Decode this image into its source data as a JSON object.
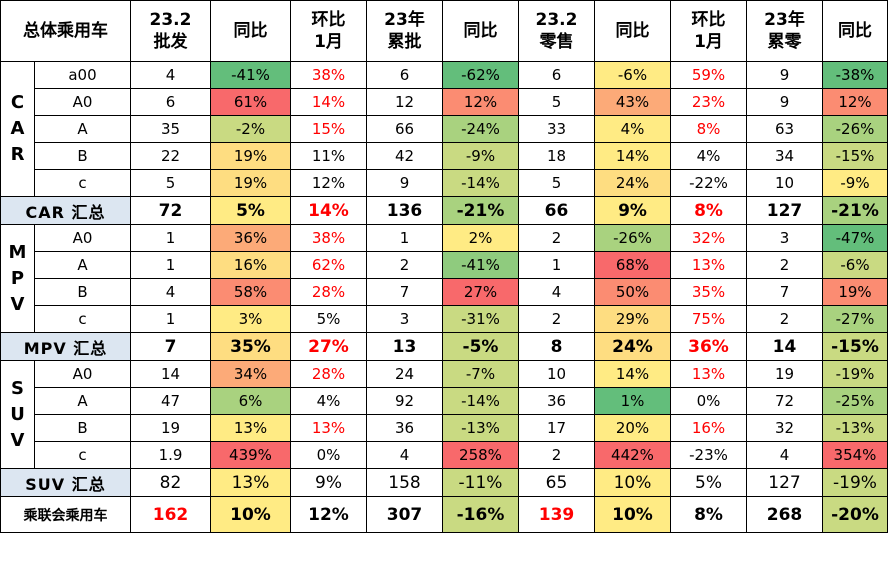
{
  "headers": [
    "总体乘用车",
    "23.2\n批发",
    "同比",
    "环比\n1月",
    "23年\n累批",
    "同比",
    "23.2\n零售",
    "同比",
    "环比\n1月",
    "23年\n累零",
    "同比"
  ],
  "colors": {
    "deep_green": "#63be7b",
    "green": "#8fcb7e",
    "light_green": "#a9d27f",
    "yellow_green": "#c9da82",
    "yellow": "#ffeb84",
    "light_orange": "#fedd81",
    "orange": "#fcaa78",
    "salmon": "#fb8c72",
    "red": "#f8696b",
    "header_blue": "#dce6f1"
  },
  "sections": [
    {
      "key": "car",
      "label": "CAR",
      "rows": [
        {
          "type": "a00",
          "wh": "4",
          "wh_yoy": "-41%",
          "wh_mom": "38%",
          "cw": "6",
          "cw_yoy": "-62%",
          "rt": "6",
          "rt_yoy": "-6%",
          "rt_mom": "59%",
          "cr": "9",
          "cr_yoy": "-38%"
        },
        {
          "type": "A0",
          "wh": "6",
          "wh_yoy": "61%",
          "wh_mom": "14%",
          "cw": "12",
          "cw_yoy": "12%",
          "rt": "5",
          "rt_yoy": "43%",
          "rt_mom": "23%",
          "cr": "9",
          "cr_yoy": "12%"
        },
        {
          "type": "A",
          "wh": "35",
          "wh_yoy": "-2%",
          "wh_mom": "15%",
          "cw": "66",
          "cw_yoy": "-24%",
          "rt": "33",
          "rt_yoy": "4%",
          "rt_mom": "8%",
          "cr": "63",
          "cr_yoy": "-26%"
        },
        {
          "type": "B",
          "wh": "22",
          "wh_yoy": "19%",
          "wh_mom": "11%",
          "cw": "42",
          "cw_yoy": "-9%",
          "rt": "18",
          "rt_yoy": "14%",
          "rt_mom": "4%",
          "cr": "34",
          "cr_yoy": "-15%"
        },
        {
          "type": "c",
          "wh": "5",
          "wh_yoy": "19%",
          "wh_mom": "12%",
          "cw": "9",
          "cw_yoy": "-14%",
          "rt": "5",
          "rt_yoy": "24%",
          "rt_mom": "-22%",
          "cr": "10",
          "cr_yoy": "-9%"
        }
      ],
      "summary": {
        "label": "CAR 汇总",
        "wh": "72",
        "wh_yoy": "5%",
        "wh_mom": "14%",
        "cw": "136",
        "cw_yoy": "-21%",
        "rt": "66",
        "rt_yoy": "9%",
        "rt_mom": "8%",
        "cr": "127",
        "cr_yoy": "-21%"
      }
    },
    {
      "key": "mpv",
      "label": "MPV",
      "rows": [
        {
          "type": "A0",
          "wh": "1",
          "wh_yoy": "36%",
          "wh_mom": "38%",
          "cw": "1",
          "cw_yoy": "2%",
          "rt": "2",
          "rt_yoy": "-26%",
          "rt_mom": "32%",
          "cr": "3",
          "cr_yoy": "-47%"
        },
        {
          "type": "A",
          "wh": "1",
          "wh_yoy": "16%",
          "wh_mom": "62%",
          "cw": "2",
          "cw_yoy": "-41%",
          "rt": "1",
          "rt_yoy": "68%",
          "rt_mom": "13%",
          "cr": "2",
          "cr_yoy": "-6%"
        },
        {
          "type": "B",
          "wh": "4",
          "wh_yoy": "58%",
          "wh_mom": "28%",
          "cw": "7",
          "cw_yoy": "27%",
          "rt": "4",
          "rt_yoy": "50%",
          "rt_mom": "35%",
          "cr": "7",
          "cr_yoy": "19%"
        },
        {
          "type": "c",
          "wh": "1",
          "wh_yoy": "3%",
          "wh_mom": "5%",
          "cw": "3",
          "cw_yoy": "-31%",
          "rt": "2",
          "rt_yoy": "29%",
          "rt_mom": "75%",
          "cr": "2",
          "cr_yoy": "-27%"
        }
      ],
      "summary": {
        "label": "MPV 汇总",
        "wh": "7",
        "wh_yoy": "35%",
        "wh_mom": "27%",
        "cw": "13",
        "cw_yoy": "-5%",
        "rt": "8",
        "rt_yoy": "24%",
        "rt_mom": "36%",
        "cr": "14",
        "cr_yoy": "-15%"
      }
    },
    {
      "key": "suv",
      "label": "SUV",
      "rows": [
        {
          "type": "A0",
          "wh": "14",
          "wh_yoy": "34%",
          "wh_mom": "28%",
          "cw": "24",
          "cw_yoy": "-7%",
          "rt": "10",
          "rt_yoy": "14%",
          "rt_mom": "13%",
          "cr": "19",
          "cr_yoy": "-19%"
        },
        {
          "type": "A",
          "wh": "47",
          "wh_yoy": "6%",
          "wh_mom": "4%",
          "cw": "92",
          "cw_yoy": "-14%",
          "rt": "36",
          "rt_yoy": "1%",
          "rt_mom": "0%",
          "cr": "72",
          "cr_yoy": "-25%"
        },
        {
          "type": "B",
          "wh": "19",
          "wh_yoy": "13%",
          "wh_mom": "13%",
          "cw": "36",
          "cw_yoy": "-13%",
          "rt": "17",
          "rt_yoy": "20%",
          "rt_mom": "16%",
          "cr": "32",
          "cr_yoy": "-13%"
        },
        {
          "type": "c",
          "wh": "1.9",
          "wh_yoy": "439%",
          "wh_mom": "0%",
          "cw": "4",
          "cw_yoy": "258%",
          "rt": "2",
          "rt_yoy": "442%",
          "rt_mom": "-23%",
          "cr": "4",
          "cr_yoy": "354%"
        }
      ],
      "summary": {
        "label": "SUV 汇总",
        "wh": "82",
        "wh_yoy": "13%",
        "wh_mom": "9%",
        "cw": "158",
        "cw_yoy": "-11%",
        "rt": "65",
        "rt_yoy": "10%",
        "rt_mom": "5%",
        "cr": "127",
        "cr_yoy": "-19%"
      }
    }
  ],
  "total": {
    "label": "乘联会乘用车",
    "wh": "162",
    "wh_yoy": "10%",
    "wh_mom": "12%",
    "cw": "307",
    "cw_yoy": "-16%",
    "rt": "139",
    "rt_yoy": "10%",
    "rt_mom": "8%",
    "cr": "268",
    "cr_yoy": "-20%"
  }
}
